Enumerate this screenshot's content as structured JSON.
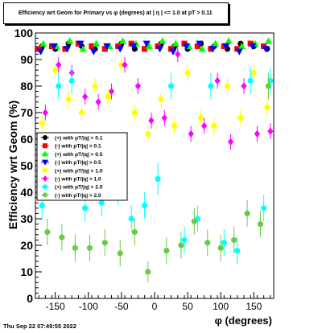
{
  "title": "Efficiency wrt Geom for Primary vs φ (degrees) at | η | <= 1.0 at pT > 0.11",
  "footer": "Thu Sep 22 07:49:55 2022",
  "chart_data": {
    "type": "scatter",
    "xlabel": "φ (degrees)",
    "ylabel": "Efficiency wrt Geom (%)",
    "xlim": [
      -180,
      180
    ],
    "ylim": [
      0,
      100
    ],
    "xticks": [
      -150,
      -100,
      -50,
      0,
      50,
      100,
      150
    ],
    "yticks": [
      0,
      10,
      20,
      30,
      40,
      50,
      60,
      70,
      80,
      90,
      100
    ],
    "grid": true,
    "legend_position": "left-middle",
    "series": [
      {
        "name": "(+) with pT/|q| > 0.1",
        "color": "#000000",
        "marker": "circle",
        "x": [
          -170,
          -150,
          -130,
          -110,
          -90,
          -70,
          -50,
          -30,
          -10,
          10,
          30,
          50,
          70,
          90,
          110,
          130,
          150,
          170
        ],
        "y": [
          95,
          94,
          96,
          95,
          94,
          95,
          96,
          94,
          95,
          96,
          95,
          94,
          96,
          95,
          94,
          96,
          95,
          94
        ],
        "err": [
          1,
          1,
          1,
          1,
          1,
          1,
          1,
          1,
          1,
          1,
          1,
          1,
          1,
          1,
          1,
          1,
          1,
          1
        ]
      },
      {
        "name": "(-) with pT/|q| > 0.1",
        "color": "#ff0000",
        "marker": "square",
        "x": [
          -175,
          -155,
          -135,
          -115,
          -95,
          -75,
          -55,
          -35,
          -15,
          5,
          25,
          45,
          65,
          85,
          105,
          125,
          145,
          165
        ],
        "y": [
          94,
          95,
          94,
          96,
          95,
          94,
          95,
          96,
          94,
          95,
          94,
          96,
          95,
          94,
          95,
          94,
          96,
          95
        ],
        "err": [
          1,
          1,
          1,
          1,
          1,
          1,
          1,
          1,
          1,
          1,
          1,
          1,
          1,
          1,
          1,
          1,
          1,
          1
        ]
      },
      {
        "name": "(+) with pT/|q| > 0.5",
        "color": "#00ff00",
        "marker": "triangle",
        "x": [
          -168,
          -148,
          -128,
          -108,
          -88,
          -68,
          -48,
          -28,
          -8,
          12,
          32,
          52,
          72,
          92,
          112,
          132,
          152,
          172
        ],
        "y": [
          96,
          95,
          97,
          94,
          96,
          95,
          97,
          96,
          95,
          97,
          96,
          95,
          94,
          96,
          97,
          95,
          96,
          97
        ],
        "err": [
          1,
          1,
          1,
          1,
          1,
          1,
          1,
          1,
          1,
          1,
          1,
          1,
          1,
          1,
          1,
          1,
          1,
          1
        ]
      },
      {
        "name": "(-) with pT/|q| > 0.5",
        "color": "#0000ff",
        "marker": "triangle-down",
        "x": [
          -172,
          -152,
          -132,
          -112,
          -92,
          -72,
          -52,
          -32,
          -12,
          8,
          28,
          48,
          68,
          88,
          108,
          128,
          148,
          168
        ],
        "y": [
          93,
          95,
          94,
          96,
          93,
          95,
          94,
          95,
          96,
          94,
          93,
          95,
          96,
          94,
          95,
          93,
          95,
          94
        ],
        "err": [
          1,
          1,
          1,
          1,
          1,
          1,
          1,
          1,
          1,
          1,
          1,
          1,
          1,
          1,
          1,
          1,
          1,
          1
        ]
      },
      {
        "name": "(+) with pT/|q| > 1.0",
        "color": "#ffff00",
        "marker": "circle",
        "x": [
          -170,
          -150,
          -130,
          -110,
          -90,
          -70,
          -50,
          -30,
          -10,
          10,
          30,
          50,
          70,
          90,
          110,
          130,
          150,
          170
        ],
        "y": [
          66,
          86,
          75,
          70,
          80,
          76,
          88,
          70,
          62,
          75,
          65,
          85,
          68,
          65,
          80,
          68,
          85,
          72
        ],
        "err": [
          3,
          3,
          3,
          3,
          3,
          3,
          3,
          3,
          3,
          3,
          3,
          3,
          3,
          3,
          3,
          3,
          3,
          3
        ]
      },
      {
        "name": "(-) with pT/|q| > 1.0",
        "color": "#ff00ff",
        "marker": "diamond",
        "x": [
          -165,
          -145,
          -125,
          -105,
          -85,
          -65,
          -45,
          -25,
          -5,
          15,
          35,
          55,
          75,
          95,
          115,
          135,
          155,
          175
        ],
        "y": [
          70,
          88,
          85,
          76,
          74,
          78,
          88,
          80,
          67,
          68,
          92,
          62,
          65,
          82,
          59,
          80,
          62,
          63
        ],
        "err": [
          3,
          3,
          3,
          3,
          3,
          3,
          3,
          3,
          3,
          3,
          3,
          3,
          3,
          3,
          3,
          3,
          3,
          3
        ]
      },
      {
        "name": "(+) with pT/|q| > 2.0",
        "color": "#00ffff",
        "marker": "circle",
        "x": [
          -170,
          -145,
          -125,
          -105,
          -80,
          -55,
          -35,
          -15,
          5,
          25,
          45,
          65,
          85,
          105,
          125,
          145,
          165,
          175
        ],
        "y": [
          35,
          80,
          82,
          34,
          36,
          40,
          30,
          35,
          45,
          80,
          22,
          30,
          80,
          21,
          18,
          82,
          34,
          82
        ],
        "err": [
          5,
          5,
          5,
          5,
          5,
          5,
          5,
          5,
          6,
          5,
          5,
          5,
          5,
          5,
          5,
          5,
          5,
          5
        ]
      },
      {
        "name": "(-) with pT/|q| > 2.0",
        "color": "#66cc44",
        "marker": "circle",
        "x": [
          -162,
          -140,
          -120,
          -98,
          -75,
          -52,
          -30,
          -10,
          18,
          40,
          60,
          80,
          100,
          120,
          140,
          160,
          172
        ],
        "y": [
          25,
          23,
          19,
          19,
          21,
          17,
          25,
          10,
          18,
          20,
          29,
          21,
          19,
          22,
          32,
          28,
          80
        ],
        "err": [
          5,
          5,
          5,
          5,
          5,
          5,
          5,
          4,
          5,
          5,
          5,
          5,
          5,
          5,
          5,
          5,
          5
        ]
      }
    ]
  }
}
